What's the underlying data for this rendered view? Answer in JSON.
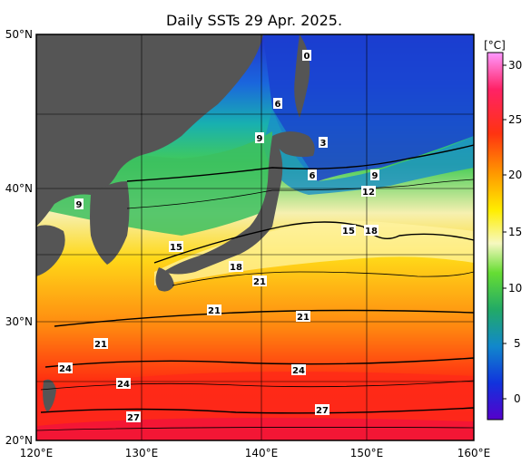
{
  "title": "Daily SSTs 29 Apr. 2025.",
  "unit_label": "[°C]",
  "lat_labels": [
    "50°N",
    "40°N",
    "30°N",
    "20°N"
  ],
  "lon_labels": [
    "120°E",
    "130°E",
    "140°E",
    "150°E",
    "160°E"
  ],
  "colorbar_ticks": [
    "30",
    "25",
    "20",
    "15",
    "10",
    "5",
    "0"
  ],
  "contour_labels": [
    "0",
    "6",
    "9",
    "3",
    "6",
    "9",
    "12",
    "9",
    "15",
    "18",
    "15",
    "18",
    "21",
    "21",
    "21",
    "21",
    "24",
    "24",
    "24",
    "27",
    "27"
  ],
  "colors": {
    "land": "#555555",
    "frame": "#000000"
  }
}
